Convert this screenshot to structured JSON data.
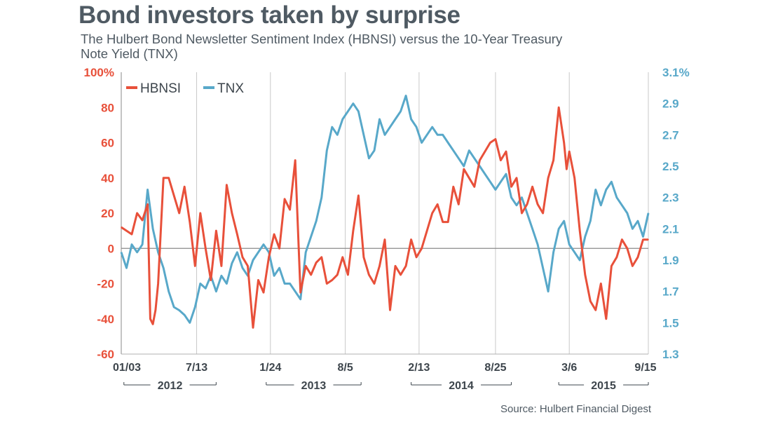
{
  "title": "Bond investors taken by surprise",
  "subtitle": "The Hulbert Bond Newsletter Sentiment Index (HBNSI) versus the 10-Year Treasury Note Yield (TNX)",
  "source": "Source: Hulbert Financial Digest",
  "colors": {
    "hbnsi": "#e8503a",
    "tnx": "#58a8c9",
    "axis_text": "#3d454c",
    "grid": "#c9c9c9",
    "zero": "#8a8a8a"
  },
  "chart_data": {
    "type": "line",
    "legend_position": "top-left",
    "grid": "vertical",
    "x_tick_labels": [
      "01/03",
      "7/13",
      "1/24",
      "8/5",
      "2/13",
      "8/25",
      "3/6",
      "9/15"
    ],
    "x_tick_positions": [
      0,
      0.143,
      0.283,
      0.425,
      0.565,
      0.71,
      0.85,
      1.0
    ],
    "years": [
      "2012",
      "2013",
      "2014",
      "2015"
    ],
    "left_axis": {
      "label": "HBNSI",
      "ylim": [
        -60,
        100
      ],
      "ticks": [
        "100%",
        "80",
        "60",
        "40",
        "20",
        "0",
        "-20",
        "-40",
        "-60"
      ]
    },
    "right_axis": {
      "label": "TNX",
      "ylim": [
        1.3,
        3.1
      ],
      "ticks": [
        "3.1%",
        "2.9",
        "2.7",
        "2.5",
        "2.3",
        "2.1",
        "1.9",
        "1.7",
        "1.5",
        "1.3"
      ]
    },
    "series": [
      {
        "name": "HBNSI",
        "axis": "left",
        "x": [
          0,
          0.01,
          0.02,
          0.03,
          0.04,
          0.05,
          0.055,
          0.06,
          0.065,
          0.07,
          0.08,
          0.09,
          0.1,
          0.11,
          0.12,
          0.13,
          0.14,
          0.15,
          0.16,
          0.17,
          0.18,
          0.19,
          0.2,
          0.21,
          0.22,
          0.23,
          0.24,
          0.25,
          0.26,
          0.27,
          0.28,
          0.29,
          0.3,
          0.31,
          0.32,
          0.33,
          0.34,
          0.35,
          0.36,
          0.37,
          0.38,
          0.39,
          0.4,
          0.41,
          0.42,
          0.43,
          0.44,
          0.45,
          0.46,
          0.47,
          0.48,
          0.49,
          0.5,
          0.51,
          0.52,
          0.53,
          0.54,
          0.55,
          0.56,
          0.57,
          0.58,
          0.59,
          0.6,
          0.61,
          0.62,
          0.63,
          0.64,
          0.65,
          0.66,
          0.67,
          0.68,
          0.69,
          0.7,
          0.71,
          0.72,
          0.73,
          0.74,
          0.75,
          0.76,
          0.77,
          0.78,
          0.79,
          0.8,
          0.81,
          0.82,
          0.83,
          0.84,
          0.845,
          0.85,
          0.86,
          0.87,
          0.88,
          0.89,
          0.9,
          0.91,
          0.92,
          0.93,
          0.94,
          0.95,
          0.96,
          0.97,
          0.98,
          0.99,
          1.0
        ],
        "values": [
          12,
          10,
          8,
          20,
          16,
          25,
          -40,
          -43,
          -35,
          -20,
          40,
          40,
          30,
          20,
          35,
          15,
          -10,
          20,
          0,
          -18,
          10,
          -10,
          36,
          20,
          8,
          -5,
          -10,
          -45,
          -18,
          -25,
          -5,
          8,
          0,
          28,
          22,
          50,
          -25,
          -10,
          -15,
          -8,
          -5,
          -20,
          -18,
          -15,
          -5,
          -15,
          10,
          30,
          -5,
          -15,
          -20,
          -10,
          5,
          -35,
          -10,
          -15,
          -10,
          5,
          -5,
          0,
          10,
          20,
          25,
          15,
          15,
          35,
          25,
          45,
          40,
          35,
          50,
          55,
          60,
          62,
          50,
          55,
          35,
          40,
          20,
          25,
          35,
          25,
          20,
          40,
          50,
          80,
          60,
          45,
          55,
          40,
          10,
          -15,
          -30,
          -35,
          -20,
          -40,
          -10,
          -5,
          5,
          0,
          -10,
          -5,
          5,
          5
        ]
      },
      {
        "name": "TNX",
        "axis": "right",
        "x": [
          0,
          0.01,
          0.02,
          0.03,
          0.04,
          0.05,
          0.06,
          0.07,
          0.08,
          0.09,
          0.1,
          0.11,
          0.12,
          0.13,
          0.14,
          0.15,
          0.16,
          0.17,
          0.18,
          0.19,
          0.2,
          0.21,
          0.22,
          0.23,
          0.24,
          0.25,
          0.26,
          0.27,
          0.28,
          0.29,
          0.3,
          0.31,
          0.32,
          0.33,
          0.34,
          0.35,
          0.36,
          0.37,
          0.38,
          0.39,
          0.4,
          0.41,
          0.42,
          0.43,
          0.44,
          0.45,
          0.46,
          0.47,
          0.48,
          0.49,
          0.5,
          0.51,
          0.52,
          0.53,
          0.54,
          0.55,
          0.56,
          0.57,
          0.58,
          0.59,
          0.6,
          0.61,
          0.62,
          0.63,
          0.64,
          0.65,
          0.66,
          0.67,
          0.68,
          0.69,
          0.7,
          0.71,
          0.72,
          0.73,
          0.74,
          0.75,
          0.76,
          0.77,
          0.78,
          0.79,
          0.8,
          0.81,
          0.82,
          0.83,
          0.84,
          0.85,
          0.86,
          0.87,
          0.88,
          0.89,
          0.9,
          0.91,
          0.92,
          0.93,
          0.94,
          0.95,
          0.96,
          0.97,
          0.98,
          0.99,
          1.0
        ],
        "values": [
          1.95,
          1.85,
          2.0,
          1.95,
          2.0,
          2.35,
          2.1,
          1.95,
          1.85,
          1.7,
          1.6,
          1.58,
          1.55,
          1.5,
          1.6,
          1.75,
          1.72,
          1.8,
          1.7,
          1.8,
          1.75,
          1.88,
          1.95,
          1.85,
          1.8,
          1.9,
          1.95,
          2.0,
          1.95,
          1.8,
          1.85,
          1.75,
          1.75,
          1.7,
          1.65,
          1.95,
          2.05,
          2.15,
          2.3,
          2.6,
          2.75,
          2.7,
          2.8,
          2.85,
          2.9,
          2.85,
          2.7,
          2.55,
          2.6,
          2.8,
          2.7,
          2.75,
          2.8,
          2.85,
          2.95,
          2.8,
          2.75,
          2.65,
          2.7,
          2.75,
          2.7,
          2.7,
          2.65,
          2.6,
          2.55,
          2.5,
          2.6,
          2.55,
          2.5,
          2.45,
          2.4,
          2.35,
          2.4,
          2.45,
          2.3,
          2.25,
          2.3,
          2.2,
          2.1,
          2.0,
          1.85,
          1.7,
          1.95,
          2.1,
          2.15,
          2.0,
          1.95,
          1.9,
          2.05,
          2.15,
          2.35,
          2.25,
          2.35,
          2.4,
          2.3,
          2.25,
          2.2,
          2.1,
          2.15,
          2.05,
          2.2
        ]
      }
    ]
  }
}
